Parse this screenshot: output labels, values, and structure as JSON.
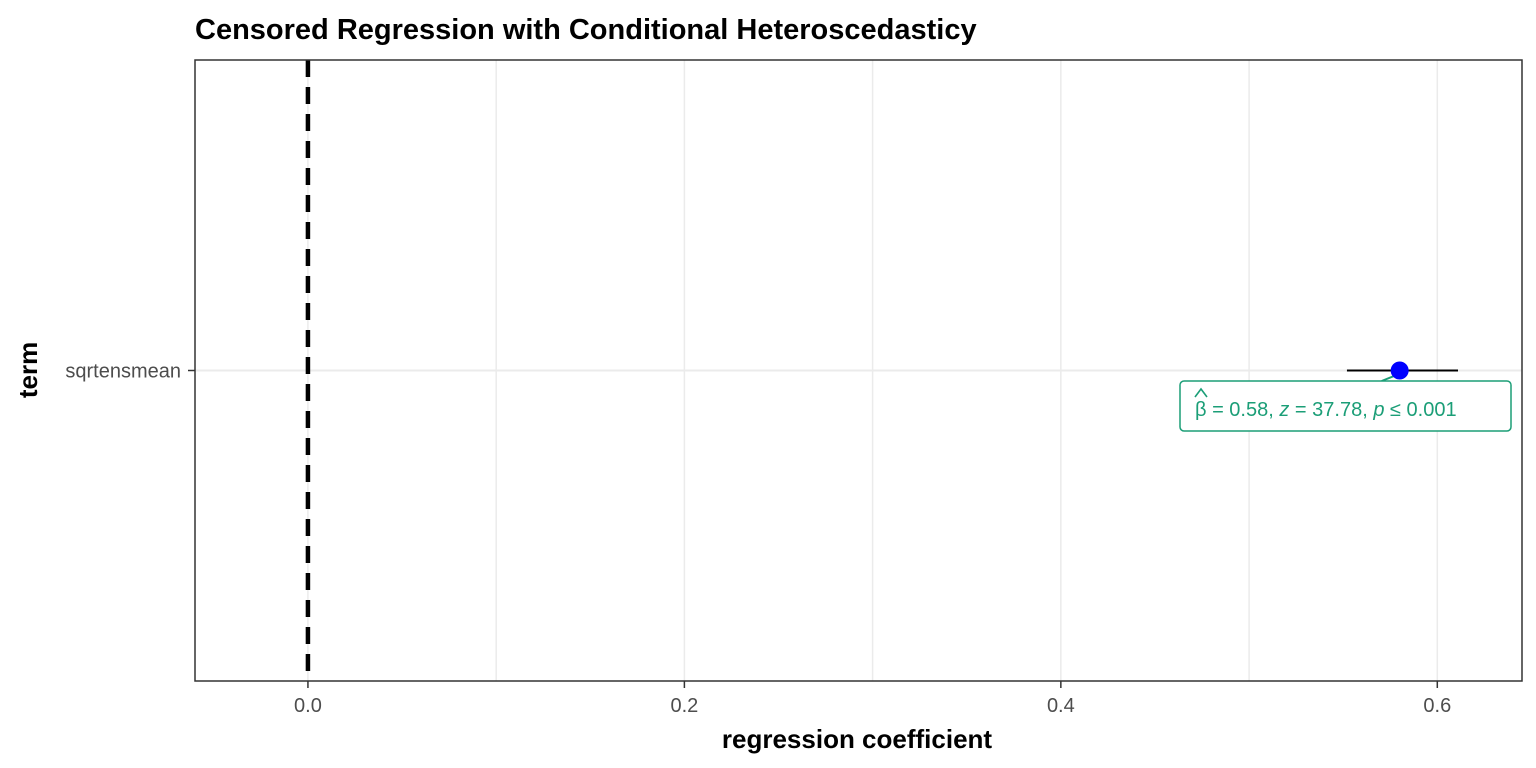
{
  "colors": {
    "point": "#0000ff",
    "annotation": "#1b9e77",
    "reference_line": "#000000",
    "grid": "#ebebeb",
    "panel_border": "#333333",
    "tick_label": "#4d4d4d"
  },
  "chart_data": {
    "type": "scatter",
    "title": "Censored Regression with Conditional Heteroscedasticy",
    "xlabel": "regression coefficient",
    "ylabel": "term",
    "xlim": [
      -0.06,
      0.645
    ],
    "x_ticks": [
      0.0,
      0.2,
      0.4,
      0.6
    ],
    "x_tick_labels": [
      "0.0",
      "0.2",
      "0.4",
      "0.6"
    ],
    "categories": [
      "sqrtensmean"
    ],
    "points": [
      {
        "term": "sqrtensmean",
        "estimate": 0.58,
        "conf_low": 0.552,
        "conf_high": 0.611,
        "label": {
          "beta_symbol": "β",
          "beta_value": "= 0.58,",
          "z_symbol": "z",
          "z_value": "= 37.78,",
          "p_symbol": "p",
          "p_value": "≤ 0.001"
        }
      }
    ],
    "reference_line": {
      "x": 0,
      "style": "dashed"
    },
    "grid": true,
    "legend": "none"
  }
}
